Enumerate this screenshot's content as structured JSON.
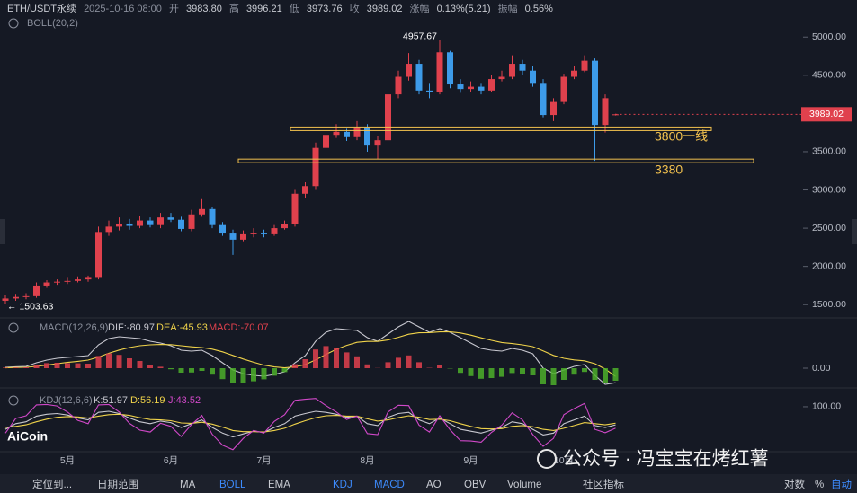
{
  "header": {
    "symbol": "ETH/USDT永续",
    "datetime": "2025-10-16 08:00",
    "open_label": "开",
    "open": "3983.80",
    "high_label": "高",
    "high": "3996.21",
    "low_label": "低",
    "low": "3973.76",
    "close_label": "收",
    "close": "3989.02",
    "change_label": "涨幅",
    "change": "0.13%(5.21)",
    "amplitude_label": "振幅",
    "amplitude": "0.56%",
    "indicator": "BOLL(20,2)"
  },
  "chart_data": [
    {
      "type": "candlestick",
      "categories": [
        null,
        null,
        null,
        null,
        null,
        null,
        "5月",
        null,
        null,
        null,
        null,
        null,
        null,
        null,
        null,
        null,
        "6月",
        null,
        null,
        null,
        null,
        null,
        null,
        null,
        null,
        "7月",
        null,
        null,
        null,
        null,
        null,
        null,
        null,
        null,
        null,
        "8月",
        null,
        null,
        null,
        null,
        null,
        null,
        null,
        null,
        null,
        "9月",
        null,
        null,
        null,
        null,
        null,
        null,
        null,
        null,
        "10月",
        null,
        null,
        null,
        null,
        null
      ],
      "open": [
        1550,
        1580,
        1600,
        1610,
        1750,
        1790,
        1800,
        1810,
        1830,
        1850,
        2450,
        2520,
        2560,
        2530,
        2600,
        2540,
        2640,
        2610,
        2490,
        2680,
        2750,
        2540,
        2430,
        2350,
        2420,
        2440,
        2420,
        2500,
        2550,
        2950,
        3050,
        3550,
        3720,
        3760,
        3690,
        3820,
        3580,
        3650,
        4250,
        4480,
        4650,
        4300,
        4280,
        4800,
        4380,
        4320,
        4350,
        4300,
        4450,
        4480,
        4650,
        4560,
        4400,
        3980,
        4150,
        4480,
        4560,
        4690,
        3850,
        3983.8
      ],
      "high": [
        1620,
        1640,
        1650,
        1790,
        1820,
        1830,
        1850,
        1870,
        1880,
        2520,
        2600,
        2640,
        2620,
        2660,
        2640,
        2700,
        2700,
        2650,
        2740,
        2880,
        2780,
        2580,
        2480,
        2470,
        2500,
        2480,
        2540,
        2600,
        3000,
        3100,
        3620,
        3800,
        3860,
        3800,
        3900,
        3860,
        3700,
        4300,
        4560,
        4790,
        4700,
        4400,
        4957.67,
        4820,
        4450,
        4420,
        4400,
        4500,
        4560,
        4760,
        4700,
        4620,
        4450,
        4200,
        4520,
        4620,
        4760,
        4720,
        4250,
        3996.21
      ],
      "low": [
        1503.63,
        1550,
        1570,
        1590,
        1720,
        1760,
        1770,
        1790,
        1800,
        1830,
        2400,
        2470,
        2480,
        2500,
        2510,
        2500,
        2580,
        2460,
        2460,
        2650,
        2500,
        2400,
        2150,
        2330,
        2380,
        2380,
        2400,
        2480,
        2520,
        2900,
        3000,
        3500,
        3680,
        3640,
        3650,
        3500,
        3400,
        3620,
        4200,
        4430,
        4250,
        4200,
        4250,
        4330,
        4270,
        4280,
        4250,
        4280,
        4420,
        4450,
        4500,
        4350,
        3950,
        3900,
        4120,
        4450,
        4540,
        3380,
        3750,
        3973.76
      ],
      "close": [
        1580,
        1600,
        1610,
        1750,
        1790,
        1800,
        1810,
        1830,
        1850,
        2450,
        2520,
        2560,
        2530,
        2600,
        2540,
        2640,
        2610,
        2490,
        2680,
        2750,
        2540,
        2430,
        2350,
        2420,
        2440,
        2420,
        2500,
        2550,
        2950,
        3050,
        3550,
        3720,
        3760,
        3690,
        3820,
        3580,
        3650,
        4250,
        4480,
        4650,
        4300,
        4280,
        4800,
        4380,
        4320,
        4350,
        4300,
        4450,
        4480,
        4650,
        4560,
        4400,
        3980,
        4150,
        4480,
        4560,
        4690,
        3850,
        4200,
        3989.02
      ],
      "up_color": "#e0414d",
      "down_color": "#3d9be9",
      "ylim": [
        1350,
        5320
      ],
      "yticks": [
        {
          "value": 1500,
          "label": "1500.00"
        },
        {
          "value": 2000,
          "label": "2000.00"
        },
        {
          "value": 2500,
          "label": "2500.00"
        },
        {
          "value": 3000,
          "label": "3000.00"
        },
        {
          "value": 3500,
          "label": "3500.00"
        },
        {
          "value": 4000,
          "label": "4000.00"
        },
        {
          "value": 4500,
          "label": "4500.00"
        },
        {
          "value": 5000,
          "label": "5000.00"
        }
      ],
      "annotations": [
        {
          "text": "4957.67"
        },
        {
          "text": "← 1503.63"
        }
      ],
      "hlines": [
        {
          "value": 3800,
          "label": "3800一线"
        },
        {
          "value": 3380,
          "label": "3380"
        }
      ],
      "hline_color": "#f2c14e"
    },
    {
      "type": "indicator",
      "title": "MACD(12,26,9)",
      "ylim": [
        -100,
        270
      ],
      "yticks": [
        {
          "value": 0,
          "label": "0.00"
        }
      ],
      "series": [
        {
          "name": "DIF:",
          "kind": "line",
          "color": "#c8c8d0",
          "values": [
            5,
            8,
            10,
            30,
            45,
            55,
            60,
            65,
            70,
            130,
            165,
            175,
            170,
            165,
            150,
            140,
            125,
            100,
            95,
            100,
            70,
            30,
            -10,
            -30,
            -40,
            -45,
            -35,
            -20,
            30,
            70,
            150,
            200,
            220,
            215,
            210,
            170,
            150,
            190,
            230,
            260,
            230,
            200,
            220,
            200,
            170,
            140,
            110,
            100,
            95,
            110,
            100,
            80,
            0,
            -30,
            -10,
            10,
            20,
            -40,
            -90,
            -80.97
          ]
        },
        {
          "name": "DEA:",
          "kind": "line",
          "color": "#f0d34a",
          "values": [
            2,
            4,
            5,
            10,
            17,
            25,
            32,
            38,
            45,
            62,
            83,
            101,
            115,
            125,
            130,
            132,
            131,
            125,
            119,
            115,
            106,
            91,
            71,
            51,
            33,
            17,
            7,
            2,
            8,
            20,
            46,
            77,
            105,
            127,
            144,
            149,
            149,
            157,
            172,
            189,
            197,
            198,
            202,
            202,
            196,
            184,
            169,
            155,
            143,
            137,
            130,
            120,
            96,
            71,
            55,
            46,
            41,
            25,
            -5,
            -45.93
          ]
        },
        {
          "name": "MACD:",
          "kind": "bar",
          "color": "#e0414d",
          "down_color": "#4caf2a",
          "values": [
            3,
            4,
            5,
            20,
            28,
            30,
            28,
            27,
            25,
            68,
            82,
            74,
            55,
            40,
            20,
            8,
            -6,
            -25,
            -24,
            -15,
            -36,
            -61,
            -81,
            -81,
            -73,
            -62,
            -42,
            -22,
            22,
            50,
            104,
            123,
            115,
            88,
            66,
            21,
            1,
            33,
            58,
            71,
            33,
            2,
            18,
            -2,
            -26,
            -44,
            -59,
            -55,
            -48,
            -27,
            -30,
            -40,
            -90,
            -95,
            -65,
            -36,
            -21,
            -65,
            -85,
            -70.07
          ]
        }
      ]
    },
    {
      "type": "indicator",
      "title": "KDJ(12,6,6)",
      "ylim": [
        -24,
        138
      ],
      "yticks": [
        {
          "value": 100,
          "label": "100.00"
        }
      ],
      "series": [
        {
          "name": "K:",
          "kind": "line",
          "color": "#c8c8d0",
          "values": [
            40,
            55,
            60,
            75,
            80,
            82,
            78,
            70,
            65,
            85,
            88,
            82,
            70,
            60,
            55,
            62,
            58,
            45,
            55,
            65,
            45,
            30,
            20,
            28,
            35,
            32,
            45,
            55,
            75,
            82,
            88,
            85,
            80,
            72,
            75,
            55,
            50,
            72,
            82,
            85,
            65,
            55,
            70,
            55,
            40,
            35,
            30,
            38,
            45,
            60,
            55,
            40,
            25,
            30,
            55,
            65,
            75,
            50,
            45,
            51.97
          ]
        },
        {
          "name": "D:",
          "kind": "line",
          "color": "#f0d34a",
          "values": [
            45,
            48,
            52,
            60,
            67,
            72,
            74,
            73,
            70,
            75,
            79,
            80,
            77,
            71,
            66,
            65,
            63,
            57,
            56,
            59,
            54,
            46,
            37,
            34,
            34,
            33,
            37,
            43,
            54,
            63,
            71,
            76,
            77,
            75,
            75,
            68,
            62,
            65,
            71,
            76,
            72,
            66,
            67,
            63,
            55,
            48,
            42,
            41,
            42,
            48,
            50,
            47,
            40,
            37,
            43,
            50,
            58,
            55,
            52,
            56.19
          ]
        },
        {
          "name": "J:",
          "kind": "line",
          "color": "#d048c8",
          "values": [
            30,
            69,
            76,
            105,
            106,
            102,
            86,
            64,
            55,
            105,
            106,
            86,
            56,
            38,
            33,
            56,
            48,
            21,
            53,
            77,
            27,
            -2,
            -14,
            16,
            37,
            30,
            61,
            79,
            117,
            120,
            122,
            103,
            86,
            66,
            75,
            29,
            26,
            86,
            104,
            103,
            51,
            33,
            76,
            39,
            10,
            9,
            6,
            32,
            51,
            84,
            65,
            26,
            -5,
            16,
            79,
            95,
            109,
            40,
            31,
            43.52
          ]
        }
      ]
    }
  ],
  "watermark": {
    "logo": "AiCoin",
    "text": "公众号 · 冯宝宝在烤红薯"
  },
  "toolbar": {
    "items": [
      "定位到...",
      "日期范围",
      "MA",
      "BOLL",
      "EMA",
      "KDJ",
      "MACD",
      "AO",
      "OBV",
      "Volume",
      "社区指标",
      "对数",
      "%",
      "自动"
    ]
  }
}
